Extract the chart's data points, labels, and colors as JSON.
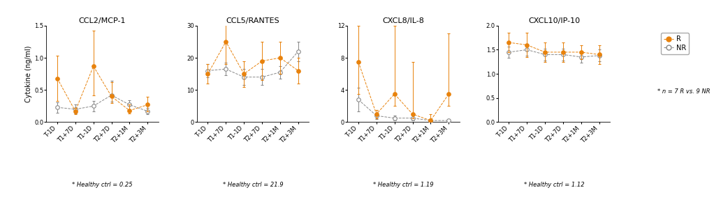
{
  "panels": [
    {
      "title": "CCL2/MCP-1",
      "ylabel": "Cytokine (ng/ml)",
      "ylim": [
        0.0,
        1.5
      ],
      "yticks": [
        0.0,
        0.5,
        1.0,
        1.5
      ],
      "healthy_ctrl": "* Healthy ctrl = 0.25",
      "R_values": [
        0.68,
        0.17,
        0.87,
        0.4,
        0.18,
        0.27
      ],
      "R_err_lo": [
        0.35,
        0.05,
        0.45,
        0.1,
        0.05,
        0.1
      ],
      "R_err_hi": [
        0.35,
        0.05,
        0.55,
        0.22,
        0.1,
        0.12
      ],
      "NR_values": [
        0.23,
        0.2,
        0.25,
        0.42,
        0.27,
        0.17
      ],
      "NR_err_lo": [
        0.08,
        0.07,
        0.08,
        0.1,
        0.07,
        0.05
      ],
      "NR_err_hi": [
        0.08,
        0.07,
        0.08,
        0.22,
        0.07,
        0.05
      ]
    },
    {
      "title": "CCL5/RANTES",
      "ylabel": "",
      "ylim": [
        0,
        30
      ],
      "yticks": [
        0,
        10,
        20,
        30
      ],
      "healthy_ctrl": "* Healthy ctrl = 21.9",
      "R_values": [
        15.0,
        25.0,
        15.0,
        19.0,
        20.0,
        16.0
      ],
      "R_err_lo": [
        3.0,
        7.0,
        4.0,
        6.0,
        5.0,
        4.0
      ],
      "R_err_hi": [
        3.0,
        7.0,
        4.0,
        6.0,
        5.0,
        4.0
      ],
      "NR_values": [
        16.0,
        16.5,
        14.0,
        14.0,
        15.5,
        22.0
      ],
      "NR_err_lo": [
        2.0,
        2.0,
        2.5,
        2.5,
        2.0,
        3.0
      ],
      "NR_err_hi": [
        2.0,
        2.0,
        2.5,
        2.5,
        2.0,
        3.0
      ]
    },
    {
      "title": "CXCL8/IL-8",
      "ylabel": "",
      "ylim": [
        0,
        12
      ],
      "yticks": [
        0,
        4,
        8,
        12
      ],
      "healthy_ctrl": "* Healthy ctrl = 1.19",
      "R_values": [
        7.5,
        1.0,
        3.5,
        1.0,
        0.2,
        3.5
      ],
      "R_err_lo": [
        4.0,
        0.5,
        1.5,
        0.5,
        0.1,
        1.5
      ],
      "R_err_hi": [
        4.5,
        0.5,
        8.5,
        6.5,
        0.8,
        7.5
      ],
      "NR_values": [
        2.8,
        0.8,
        0.5,
        0.5,
        0.2,
        0.2
      ],
      "NR_err_lo": [
        1.5,
        0.4,
        0.3,
        0.3,
        0.1,
        0.1
      ],
      "NR_err_hi": [
        1.5,
        0.4,
        0.3,
        0.3,
        0.1,
        0.1
      ]
    },
    {
      "title": "CXCL10/IP-10",
      "ylabel": "",
      "ylim": [
        0.0,
        2.0
      ],
      "yticks": [
        0.0,
        0.5,
        1.0,
        1.5,
        2.0
      ],
      "healthy_ctrl": "* Healthy ctrl = 1.12",
      "R_values": [
        1.65,
        1.6,
        1.45,
        1.45,
        1.45,
        1.4
      ],
      "R_err_lo": [
        0.2,
        0.25,
        0.2,
        0.2,
        0.15,
        0.2
      ],
      "R_err_hi": [
        0.2,
        0.25,
        0.2,
        0.2,
        0.15,
        0.2
      ],
      "NR_values": [
        1.45,
        1.5,
        1.4,
        1.4,
        1.35,
        1.38
      ],
      "NR_err_lo": [
        0.12,
        0.12,
        0.12,
        0.12,
        0.12,
        0.12
      ],
      "NR_err_hi": [
        0.12,
        0.12,
        0.12,
        0.12,
        0.12,
        0.12
      ]
    }
  ],
  "xticklabels": [
    "T-1D",
    "T1+7D",
    "T1-1D",
    "T2+7D",
    "T2+1M",
    "T2+3M"
  ],
  "R_color": "#E8820C",
  "NR_color": "#888888",
  "R_label": "R",
  "NR_label": "NR",
  "legend_note": "* n = 7 R vs. 9 NR",
  "background_color": "#ffffff",
  "title_fontsize": 8,
  "label_fontsize": 7,
  "tick_fontsize": 6,
  "annot_fontsize": 6,
  "legend_fontsize": 7
}
